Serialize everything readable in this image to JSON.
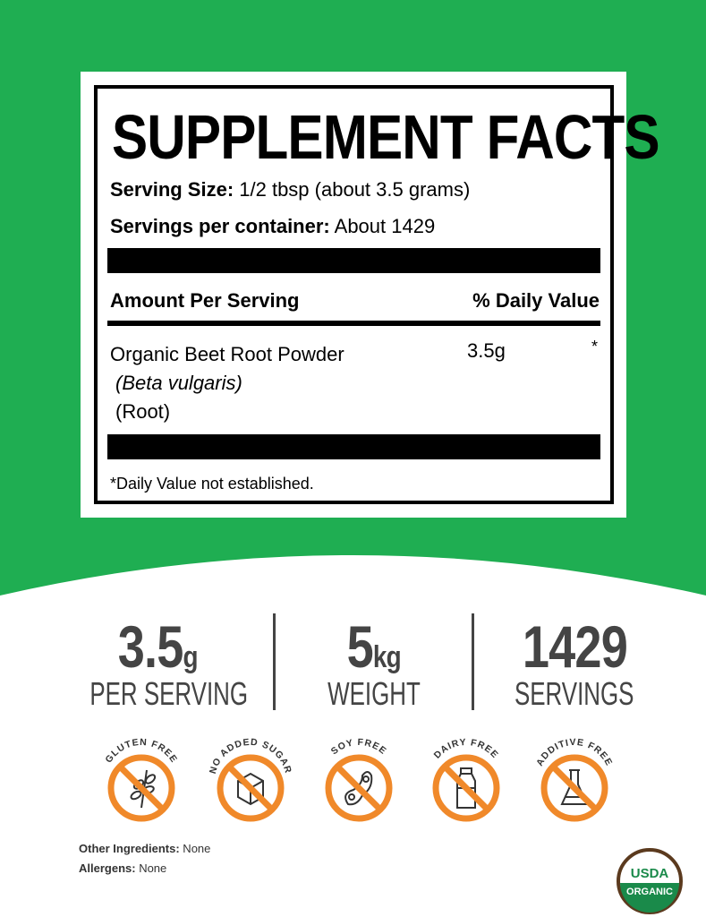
{
  "colors": {
    "background_green": "#1fae52",
    "badge_orange": "#f0892a",
    "stat_gray": "#444444",
    "usda_green": "#1a8a4a",
    "usda_brown": "#5b3a1e"
  },
  "facts": {
    "title": "SUPPLEMENT FACTS",
    "serving_size_label": "Serving Size:",
    "serving_size_value": " 1/2 tbsp (about 3.5 grams)",
    "servings_label": "Servings per container:",
    "servings_value": " About 1429",
    "amount_header": "Amount Per Serving",
    "dv_header": "% Daily Value",
    "ingredient": {
      "name": "Organic Beet Root Powder",
      "latin": "(Beta vulgaris)",
      "part": "(Root)",
      "amount": "3.5g",
      "dv": "*"
    },
    "footnote": "*Daily Value not established."
  },
  "stats": [
    {
      "value": "3.5",
      "unit": "g",
      "label": "PER SERVING"
    },
    {
      "value": "5",
      "unit": "kg",
      "label": "WEIGHT"
    },
    {
      "value": "1429",
      "unit": "",
      "label": "SERVINGS"
    }
  ],
  "badges": [
    {
      "label": "GLUTEN FREE",
      "icon": "wheat-icon"
    },
    {
      "label": "NO ADDED SUGAR",
      "icon": "sugar-cube-icon"
    },
    {
      "label": "SOY FREE",
      "icon": "soybean-icon"
    },
    {
      "label": "DAIRY FREE",
      "icon": "milk-bottle-icon"
    },
    {
      "label": "ADDITIVE FREE",
      "icon": "flask-icon"
    }
  ],
  "other_ingredients": {
    "label": "Other Ingredients:",
    "value": " None"
  },
  "allergens": {
    "label": "Allergens:",
    "value": " None"
  },
  "usda": {
    "top": "USDA",
    "bottom": "ORGANIC"
  }
}
